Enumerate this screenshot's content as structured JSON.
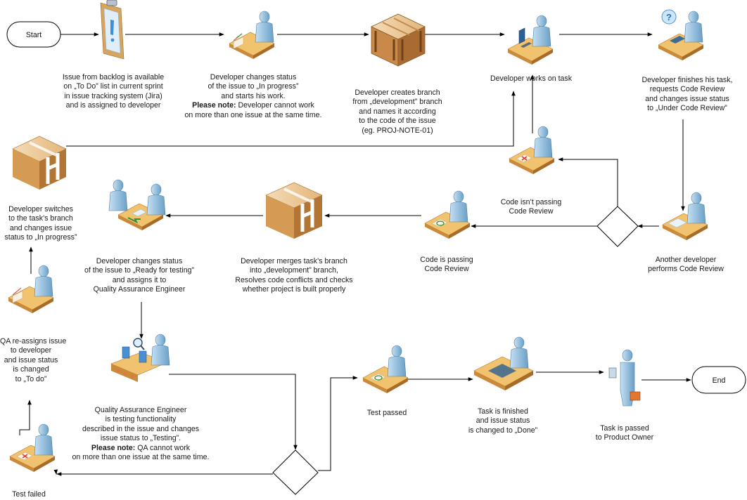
{
  "terminals": {
    "start": "Start",
    "end": "End"
  },
  "steps": {
    "backlog": [
      "Issue from backlog is available",
      "on „To Do” list in current sprint",
      "in issue tracking system (Jira)",
      "and is assigned to developer"
    ],
    "in_progress": [
      "Developer changes status",
      "of the issue to „In progress”",
      "and starts his work."
    ],
    "in_progress_note_label": "Please note:",
    "in_progress_note_text": " Developer cannot work",
    "in_progress_note_last": "on more than one issue at the same time.",
    "branch": [
      "Developer creates branch",
      "from „development” branch",
      "and names it according",
      "to the code of the issue",
      "(eg. PROJ-NOTE-01)"
    ],
    "works": "Developer works on task",
    "finishes": [
      "Developer finishes his task,",
      "requests Code Review",
      "and changes issue status",
      "to „Under Code Review”"
    ],
    "code_review": [
      "Another developer",
      "performs Code Review"
    ],
    "not_passing": [
      "Code isn’t passing",
      "Code Review"
    ],
    "passing": [
      "Code is passing",
      "Code Review"
    ],
    "merges": [
      "Developer merges task’s branch",
      "into „development” branch,",
      "Resolves code conflicts and checks",
      "whether project is built properly"
    ],
    "ready": [
      "Developer changes status",
      "of the issue to „Ready for testing”",
      "and assigns it to",
      "Quality Assurance Engineer"
    ],
    "switches": [
      "Developer switches",
      "to the task’s branch",
      "and changes issue",
      "status to „In progress”"
    ],
    "qa_reassigns": [
      "QA re-assigns issue",
      "to developer",
      "and issue status",
      "is changed",
      "to „To do”"
    ],
    "qa_testing": [
      "Quality Assurance Engineer",
      "is testing functionality",
      "described in the issue and changes",
      "issue status to „Testing”."
    ],
    "qa_note_label": "Please note:",
    "qa_note_text": " QA cannot work",
    "qa_note_last": "on more than one issue at the same time.",
    "test_failed": "Test failed",
    "test_passed": "Test passed",
    "done": [
      "Task is finished",
      "and issue status",
      "is changed to „Done”"
    ],
    "product_owner": [
      "Task is passed",
      "to Product Owner"
    ]
  },
  "icons": [
    "clipboard-icon",
    "developer-desk-icon",
    "wooden-crate-icon",
    "developer-computer-icon",
    "developer-phone-icon",
    "reviewer-desk-icon",
    "desk-rejected-icon",
    "desk-approved-icon",
    "branch-box-icon",
    "two-people-desk-icon",
    "qa-inspection-icon",
    "product-owner-icon",
    "decision-diamond"
  ],
  "colors": {
    "line": "#000000",
    "skin": "#8ab8d8",
    "desk": "#e0a54a",
    "box": "#d8a05c"
  }
}
